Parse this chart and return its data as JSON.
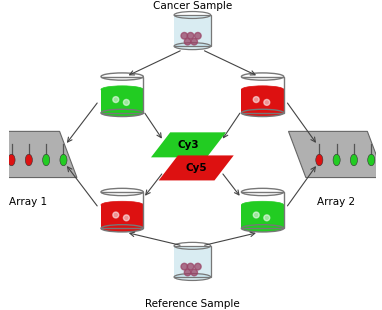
{
  "background_color": "#ffffff",
  "cancer_sample_label": "Cancer Sample",
  "reference_sample_label": "Reference Sample",
  "array1_label": "Array 1",
  "array2_label": "Array 2",
  "cy3_label": "Cy3",
  "cy5_label": "Cy5",
  "cy3_color": "#22cc22",
  "cy5_color": "#dd1111",
  "green_color": "#22cc22",
  "red_color": "#dd1111",
  "light_blue_color": "#bbdde8",
  "glass_edge_color": "#777777",
  "arrow_color": "#444444",
  "label_fontsize": 7.5
}
